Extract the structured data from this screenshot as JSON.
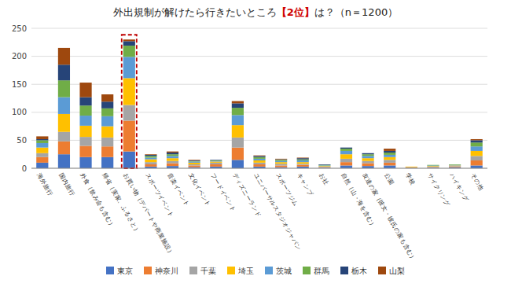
{
  "chart_data": {
    "type": "bar",
    "stacked": true,
    "title": "外出規制が解けたら行きたいところ【2位】は？（n＝1200）",
    "categories": [
      "海外旅行",
      "国内旅行",
      "外食（飲み会も含む）",
      "帰省（実家、ふるさと）",
      "お買い物（デパートや商業施設）",
      "スポーツイベント",
      "音楽イベント",
      "文化イベント",
      "フードイベント",
      "ディズニーランド",
      "ユニバーサルスタジオジャパン",
      "スポーツジム",
      "キャンプ",
      "お社",
      "自然（山・海を含む）",
      "友達の家（彼女・彼氏の家も含む）",
      "公園",
      "学校",
      "サイクリング",
      "ハイキング",
      "その他"
    ],
    "series": [
      {
        "name": "東京",
        "color": "#4472C4",
        "values": [
          10,
          25,
          20,
          20,
          30,
          3,
          4,
          2,
          3,
          15,
          3,
          2,
          3,
          1,
          5,
          4,
          5,
          1,
          1,
          2,
          5
        ]
      },
      {
        "name": "神奈川",
        "color": "#ED7D31",
        "values": [
          10,
          23,
          20,
          19,
          55,
          4,
          5,
          3,
          4,
          22,
          4,
          3,
          3,
          1,
          6,
          5,
          5,
          1,
          1,
          1,
          9
        ]
      },
      {
        "name": "千葉",
        "color": "#A5A5A5",
        "values": [
          7,
          17,
          16,
          16,
          28,
          4,
          4,
          2,
          3,
          18,
          3,
          3,
          2,
          1,
          6,
          4,
          5,
          0,
          1,
          1,
          8
        ]
      },
      {
        "name": "埼玉",
        "color": "#FFC000",
        "values": [
          10,
          32,
          20,
          20,
          48,
          5,
          5,
          3,
          2,
          22,
          4,
          3,
          3,
          1,
          8,
          5,
          5,
          1,
          1,
          1,
          9
        ]
      },
      {
        "name": "茨城",
        "color": "#5B9BD5",
        "values": [
          8,
          30,
          18,
          18,
          38,
          3,
          4,
          2,
          1,
          18,
          3,
          2,
          3,
          1,
          6,
          4,
          4,
          0,
          1,
          1,
          8
        ]
      },
      {
        "name": "群馬",
        "color": "#70AD47",
        "values": [
          5,
          30,
          18,
          14,
          20,
          3,
          3,
          1,
          1,
          13,
          3,
          2,
          2,
          1,
          4,
          3,
          4,
          0,
          1,
          1,
          7
        ]
      },
      {
        "name": "栃木",
        "color": "#264478",
        "values": [
          2,
          28,
          15,
          12,
          8,
          2,
          3,
          1,
          1,
          8,
          2,
          1,
          2,
          1,
          2,
          2,
          3,
          0,
          0,
          0,
          4
        ]
      },
      {
        "name": "山梨",
        "color": "#9E480E",
        "values": [
          5,
          30,
          26,
          13,
          3,
          1,
          2,
          1,
          0,
          4,
          1,
          1,
          1,
          0,
          0,
          0,
          4,
          0,
          0,
          0,
          2
        ]
      }
    ],
    "ylim": [
      0,
      250
    ],
    "yticks": [
      0,
      50,
      100,
      150,
      200,
      250
    ],
    "grid": true,
    "legend": "bottom"
  }
}
